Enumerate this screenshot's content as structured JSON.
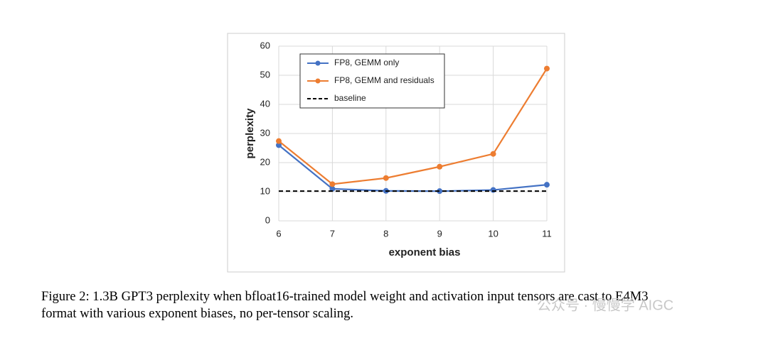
{
  "chart_data": {
    "type": "line",
    "x": [
      6,
      7,
      8,
      9,
      10,
      11
    ],
    "xlim": [
      6,
      11
    ],
    "xticks": [
      6,
      7,
      8,
      9,
      10,
      11
    ],
    "ylim": [
      0,
      60
    ],
    "yticks": [
      0,
      10,
      20,
      30,
      40,
      50,
      60
    ],
    "xlabel": "exponent bias",
    "ylabel": "perplexity",
    "grid": true,
    "legend": "top-left",
    "series": [
      {
        "name": "FP8, GEMM only",
        "color": "#4472c4",
        "markers": true,
        "dashed": false,
        "values": [
          26,
          11,
          10.3,
          10.2,
          10.6,
          12.4
        ]
      },
      {
        "name": "FP8, GEMM and residuals",
        "color": "#ed7d31",
        "markers": true,
        "dashed": false,
        "values": [
          27.4,
          12.6,
          14.7,
          18.6,
          23,
          52.3
        ]
      },
      {
        "name": "baseline",
        "color": "#000000",
        "markers": false,
        "dashed": true,
        "values": [
          10.2,
          10.2,
          10.2,
          10.2,
          10.2,
          10.2
        ]
      }
    ]
  },
  "caption": [
    "Figure 2: 1.3B GPT3 perplexity when bfloat16-trained model weight and activation input tensors are cast to E4M3",
    "format with various exponent biases, no per-tensor scaling."
  ],
  "watermark": "公众号 · 慢慢学 AIGC"
}
